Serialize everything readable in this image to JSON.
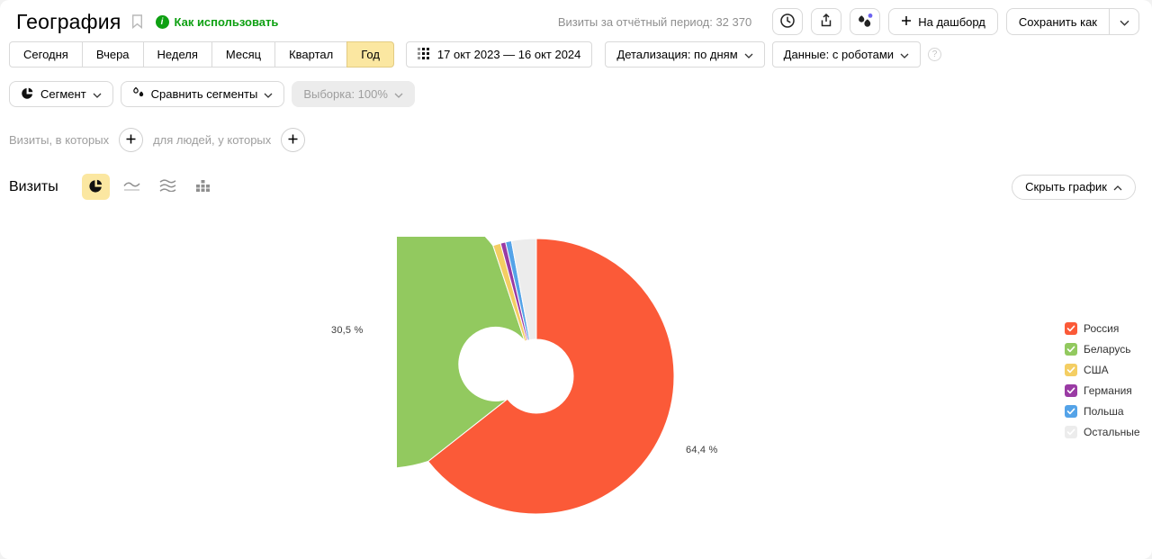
{
  "header": {
    "title": "География",
    "how_to_use_link": "Как использовать",
    "visits_summary": "Визиты за отчётный период: 32 370",
    "dashboard_button": "На дашборд",
    "save_as_button": "Сохранить как"
  },
  "toolbar": {
    "period_tabs": [
      "Сегодня",
      "Вчера",
      "Неделя",
      "Месяц",
      "Квартал",
      "Год"
    ],
    "selected_tab": "Год",
    "date_range": "17 окт 2023 — 16 окт 2024",
    "detalization_dropdown": "Детализация: по дням",
    "data_dropdown": "Данные: с роботами",
    "help_icon": "?"
  },
  "segments": {
    "segment_button": "Сегмент",
    "compare_button": "Сравнить сегменты",
    "sample_button": "Выборка: 100%"
  },
  "filters": {
    "visits_label": "Визиты, в которых",
    "people_label": "для людей, у которых"
  },
  "chart_section": {
    "metric_label": "Визиты",
    "hide_chart_button": "Скрыть график"
  },
  "chart_data": {
    "type": "pie",
    "title": "Визиты",
    "donut": true,
    "start_angle_deg": 0,
    "direction": "clockwise",
    "legend_position": "right",
    "categories": [
      "Россия",
      "Беларусь",
      "США",
      "Германия",
      "Польша",
      "Остальные"
    ],
    "values": [
      64.4,
      30.5,
      0.9,
      0.6,
      0.7,
      2.9
    ],
    "unit": "%",
    "colors": [
      "#FB5A38",
      "#92C95F",
      "#F4CE63",
      "#9A3BA4",
      "#54A3E8",
      "#ECECEC"
    ],
    "visible_labels": [
      {
        "slice": "Россия",
        "text": "64,4 %"
      },
      {
        "slice": "Беларусь",
        "text": "30,5 %"
      }
    ]
  },
  "colors": {
    "accent_yellow": "#FBE7A1",
    "link_green": "#0EA012",
    "muted_text": "#8F8F8F",
    "border": "#D9D9D9",
    "ai_dot": "#6C63F0"
  }
}
